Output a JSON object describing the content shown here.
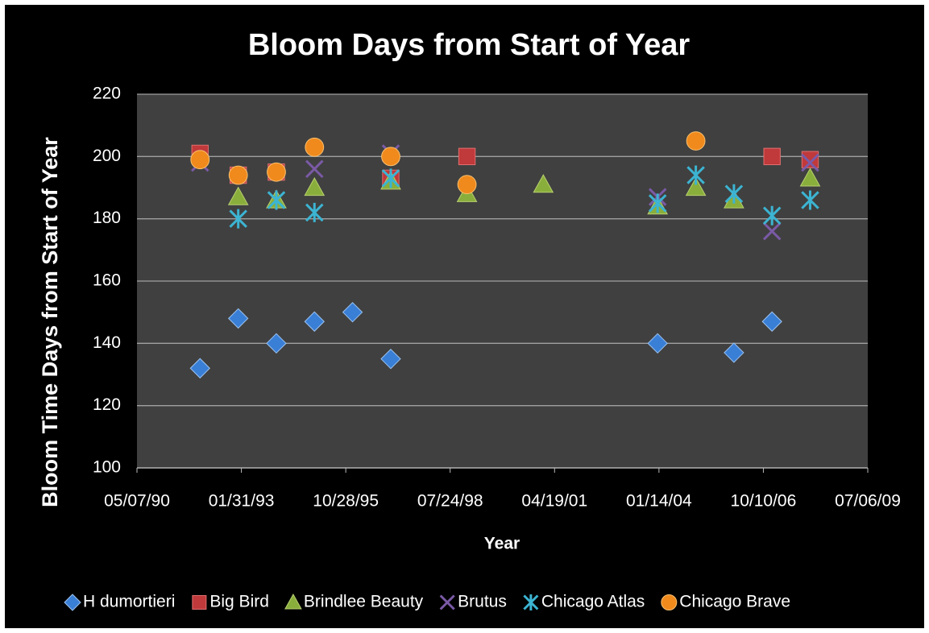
{
  "chart_data": {
    "type": "scatter",
    "title": "Bloom Days from Start of Year",
    "x_label": "Year",
    "y_label": "Bloom Time Days from Start of Year",
    "xlim": [
      "05/07/90",
      "07/06/09"
    ],
    "xticks": [
      "05/07/90",
      "01/31/93",
      "10/28/95",
      "07/24/98",
      "04/19/01",
      "01/14/04",
      "10/10/06",
      "07/06/09"
    ],
    "ylim": [
      100,
      220
    ],
    "yticks": [
      100,
      120,
      140,
      160,
      180,
      200,
      220
    ],
    "grid": true,
    "legend": "bottom",
    "series": [
      {
        "name": "H dumortieri",
        "color": "#3a7fd6",
        "marker": "diamond",
        "x": [
          "01/01/92",
          "01/01/93",
          "01/01/94",
          "01/01/95",
          "01/01/96",
          "01/01/97",
          "01/01/04",
          "01/01/06",
          "01/01/07"
        ],
        "values": [
          132,
          148,
          140,
          147,
          150,
          135,
          140,
          137,
          147
        ]
      },
      {
        "name": "Big Bird",
        "color": "#c0393b",
        "marker": "square",
        "x": [
          "01/01/92",
          "01/01/93",
          "01/01/94",
          "01/01/97",
          "01/01/99",
          "01/01/07",
          "01/01/08"
        ],
        "values": [
          201,
          194,
          195,
          193,
          200,
          200,
          199
        ]
      },
      {
        "name": "Brindlee Beauty",
        "color": "#8aae3b",
        "marker": "triangle",
        "x": [
          "01/01/93",
          "01/01/94",
          "01/01/95",
          "01/01/97",
          "01/01/99",
          "01/01/01",
          "01/01/04",
          "01/01/05",
          "01/01/06",
          "01/01/08"
        ],
        "values": [
          187,
          186,
          190,
          192,
          188,
          191,
          184,
          190,
          186,
          193
        ]
      },
      {
        "name": "Brutus",
        "color": "#7a5aa6",
        "marker": "x",
        "x": [
          "01/01/92",
          "01/01/95",
          "01/01/97",
          "01/01/04",
          "01/01/07",
          "01/01/08"
        ],
        "values": [
          198,
          196,
          201,
          187,
          176,
          198
        ]
      },
      {
        "name": "Chicago Atlas",
        "color": "#3cb4d2",
        "marker": "star",
        "x": [
          "01/01/93",
          "01/01/94",
          "01/01/95",
          "01/01/97",
          "01/01/04",
          "01/01/05",
          "01/01/06",
          "01/01/07",
          "01/01/08"
        ],
        "values": [
          180,
          186,
          182,
          193,
          185,
          194,
          188,
          181,
          186
        ]
      },
      {
        "name": "Chicago Brave",
        "color": "#f08a1c",
        "marker": "circle",
        "x": [
          "01/01/92",
          "01/01/93",
          "01/01/94",
          "01/01/95",
          "01/01/97",
          "01/01/99",
          "01/01/05"
        ],
        "values": [
          199,
          194,
          195,
          203,
          200,
          191,
          205
        ]
      }
    ]
  }
}
